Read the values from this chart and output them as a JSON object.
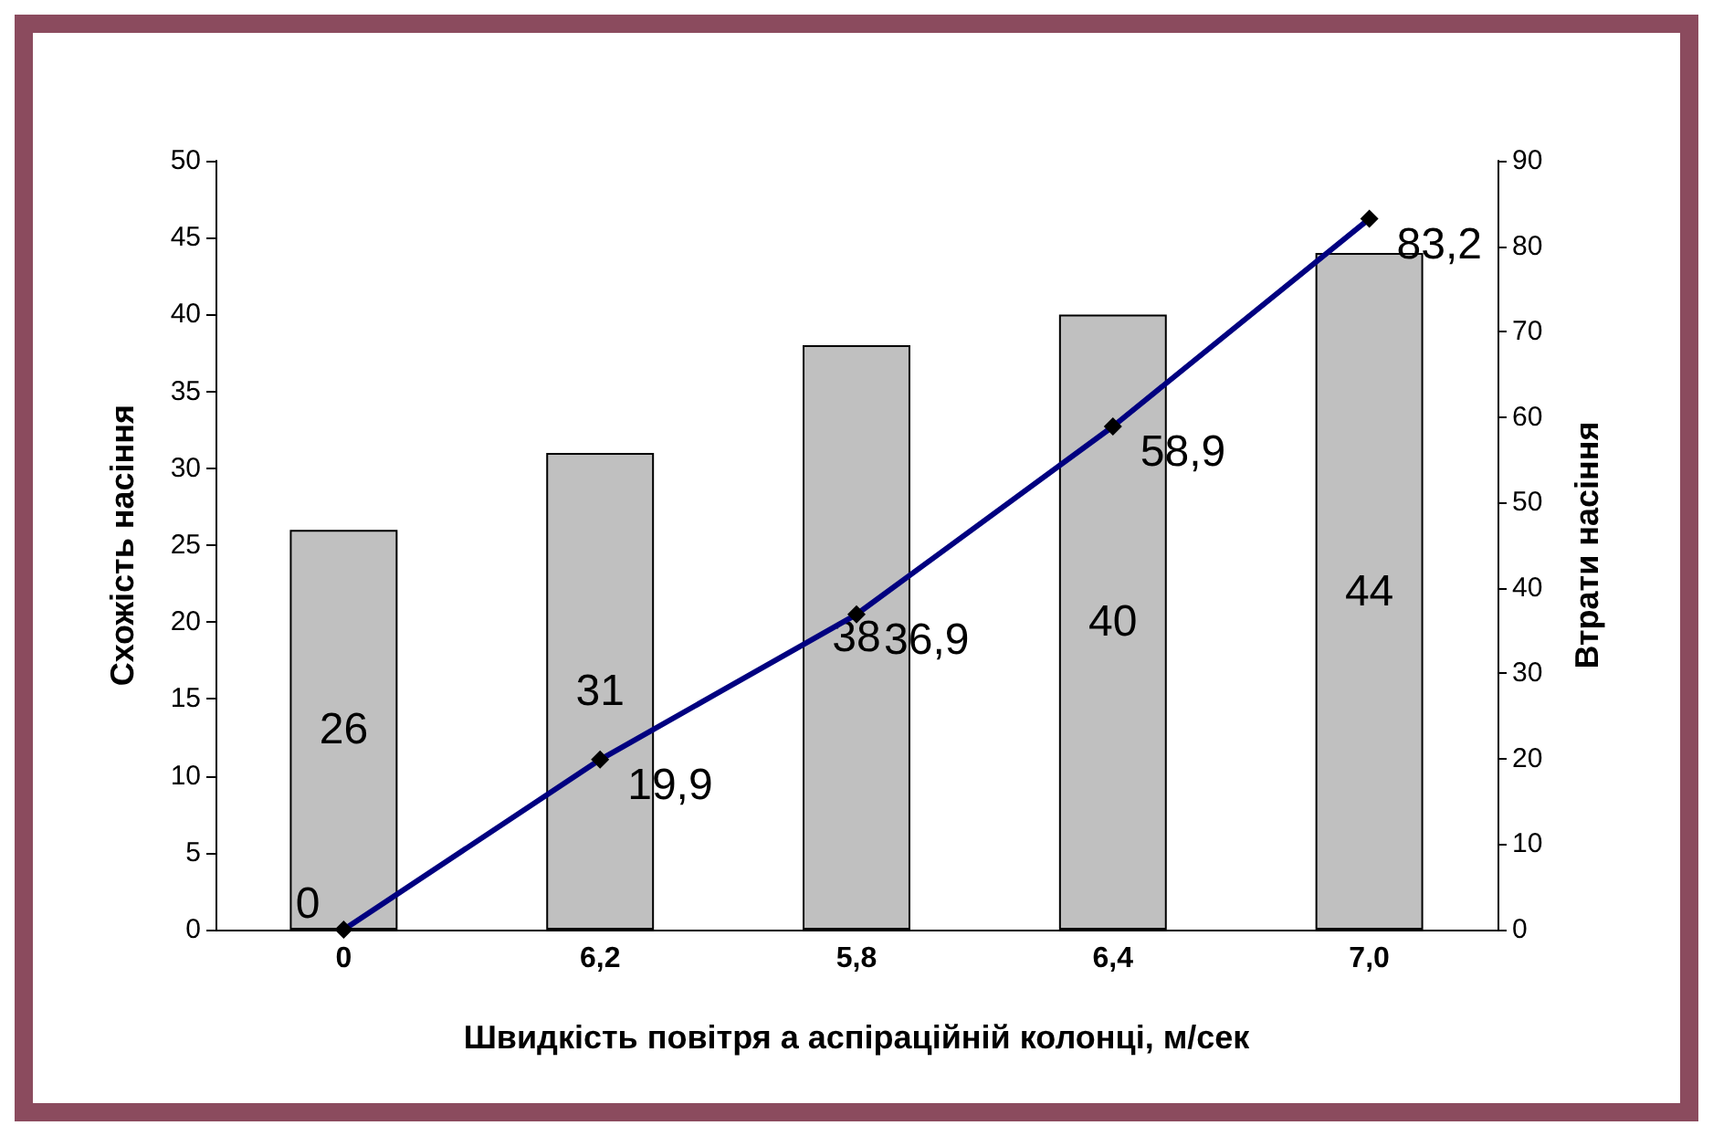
{
  "chart_data": {
    "type": "bar",
    "xlabel": "Швидкість повітря а аспіраційній колонці, м/сек",
    "ylabel": "Схожість насіння",
    "y2label": "Втрати насіння",
    "categories": [
      "0",
      "6,2",
      "5,8",
      "6,4",
      "7,0"
    ],
    "series": [
      {
        "color": "#c0c0c0",
        "values": [
          26,
          31,
          38,
          40,
          44
        ],
        "value_labels": [
          "26",
          "31",
          "38",
          "40",
          "44"
        ]
      },
      {
        "type": "line",
        "axis": "y2",
        "color": "#000080",
        "values": [
          0,
          19.9,
          36.9,
          58.9,
          83.2
        ],
        "value_labels": [
          "0",
          "19,9",
          "36,9",
          "58,9",
          "83,2"
        ]
      }
    ],
    "ylim": [
      0,
      50
    ],
    "yticks": [
      0,
      5,
      10,
      15,
      20,
      25,
      30,
      35,
      40,
      45,
      50
    ],
    "y2lim": [
      0,
      90
    ],
    "y2ticks": [
      0,
      10,
      20,
      30,
      40,
      50,
      60,
      70,
      80,
      90
    ],
    "marker": "diamond",
    "line_style": "solid",
    "grid": false
  }
}
